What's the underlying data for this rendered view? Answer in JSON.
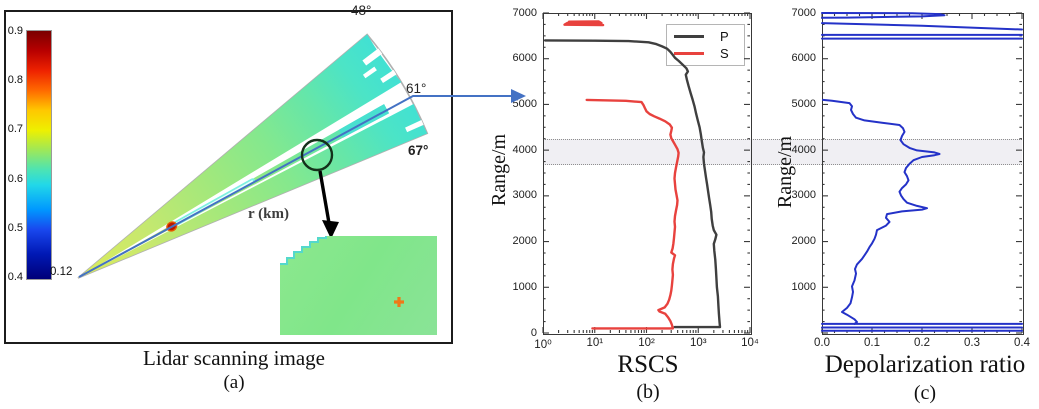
{
  "panel_a": {
    "caption": "Lidar scanning image",
    "tag": "(a)",
    "colorbar": {
      "tick_labels": [
        "0.9",
        "0.8",
        "0.7",
        "0.6",
        "0.5",
        "0.4"
      ],
      "origin_label": "0.12",
      "top_color": "#7a0000",
      "bottom_color": "#000078"
    },
    "angles": {
      "top": "48°",
      "middle": "61°",
      "bottom": "67°"
    },
    "range_label": "r (km)"
  },
  "panel_b": {
    "tag": "(b)",
    "xlabel": "RSCS",
    "ylabel": "Range/m",
    "x_tick_labels": [
      "10⁰",
      "10¹",
      "10²",
      "10³",
      "10⁴"
    ],
    "y_tick_labels": [
      "7000",
      "6000",
      "5000",
      "4000",
      "3000",
      "2000",
      "1000",
      "0"
    ],
    "legend": [
      {
        "label": "P",
        "color": "#3f3f3f"
      },
      {
        "label": "S",
        "color": "#e8423e"
      }
    ]
  },
  "panel_c": {
    "tag": "(c)",
    "xlabel": "Depolarization ratio",
    "ylabel": "Range/m",
    "x_tick_labels": [
      "0.0",
      "0.1",
      "0.2",
      "0.3",
      "0.4"
    ],
    "y_tick_labels": [
      "7000",
      "6000",
      "5000",
      "4000",
      "3000",
      "2000",
      "1000"
    ]
  },
  "colors": {
    "p_curve": "#3f3f3f",
    "s_curve": "#e8423e",
    "depol_curve": "#2432c8",
    "connector": "#4472c4",
    "fan_origin_color": "#dcec5a",
    "fan_rim_color": "#3fe0d6",
    "inset_fill": "#84e78a",
    "hotspot_fill": "#b81800",
    "hotspot_edge": "#e85c00",
    "plus_marker": "#f07818"
  },
  "highlight_band": {
    "range_min_m": 3730,
    "range_max_m": 4240
  },
  "chart_data": [
    {
      "type": "line",
      "title": "Range-corrected signal profiles",
      "xlabel": "RSCS",
      "ylabel": "Range/m",
      "x_scale": "log10",
      "xlim": [
        1,
        10000
      ],
      "ylim": [
        0,
        7000
      ],
      "legend_position": "upper right",
      "series": [
        {
          "name": "P",
          "color": "#3f3f3f",
          "points": [
            [
              350,
              130
            ],
            [
              2630,
              130
            ],
            [
              2570,
              250
            ],
            [
              2510,
              420
            ],
            [
              2450,
              600
            ],
            [
              2400,
              800
            ],
            [
              2290,
              1000
            ],
            [
              2240,
              1200
            ],
            [
              2190,
              1400
            ],
            [
              2140,
              1600
            ],
            [
              2040,
              1800
            ],
            [
              2000,
              1950
            ],
            [
              2140,
              2050
            ],
            [
              2240,
              2150
            ],
            [
              2000,
              2250
            ],
            [
              1900,
              2350
            ],
            [
              1820,
              2500
            ],
            [
              1780,
              2650
            ],
            [
              1700,
              2800
            ],
            [
              1620,
              2950
            ],
            [
              1550,
              3100
            ],
            [
              1480,
              3250
            ],
            [
              1410,
              3400
            ],
            [
              1350,
              3550
            ],
            [
              1290,
              3700
            ],
            [
              1260,
              3850
            ],
            [
              1290,
              3950
            ],
            [
              1230,
              4050
            ],
            [
              1170,
              4200
            ],
            [
              1120,
              4350
            ],
            [
              1060,
              4500
            ],
            [
              980,
              4650
            ],
            [
              910,
              4800
            ],
            [
              850,
              4950
            ],
            [
              780,
              5100
            ],
            [
              710,
              5250
            ],
            [
              650,
              5400
            ],
            [
              600,
              5550
            ],
            [
              575,
              5650
            ],
            [
              630,
              5720
            ],
            [
              590,
              5790
            ],
            [
              500,
              5870
            ],
            [
              420,
              5950
            ],
            [
              355,
              6020
            ],
            [
              320,
              6090
            ],
            [
              290,
              6150
            ],
            [
              250,
              6220
            ],
            [
              200,
              6270
            ],
            [
              155,
              6320
            ],
            [
              110,
              6360
            ],
            [
              45,
              6385
            ],
            [
              10,
              6395
            ],
            [
              1.1,
              6400
            ]
          ]
        },
        {
          "name": "S",
          "color": "#e8423e",
          "points": [
            [
              9,
              100
            ],
            [
              324,
              100
            ],
            [
              310,
              180
            ],
            [
              290,
              260
            ],
            [
              263,
              340
            ],
            [
              230,
              420
            ],
            [
              178,
              470
            ],
            [
              170,
              500
            ],
            [
              225,
              560
            ],
            [
              255,
              640
            ],
            [
              275,
              730
            ],
            [
              290,
              830
            ],
            [
              302,
              930
            ],
            [
              310,
              1040
            ],
            [
              316,
              1150
            ],
            [
              324,
              1270
            ],
            [
              316,
              1390
            ],
            [
              324,
              1510
            ],
            [
              340,
              1630
            ],
            [
              355,
              1700
            ],
            [
              302,
              1760
            ],
            [
              320,
              1850
            ],
            [
              331,
              1960
            ],
            [
              340,
              2080
            ],
            [
              347,
              2200
            ],
            [
              355,
              2320
            ],
            [
              347,
              2440
            ],
            [
              355,
              2560
            ],
            [
              372,
              2680
            ],
            [
              390,
              2800
            ],
            [
              398,
              2900
            ],
            [
              380,
              3020
            ],
            [
              363,
              3140
            ],
            [
              355,
              3260
            ],
            [
              347,
              3380
            ],
            [
              355,
              3500
            ],
            [
              372,
              3620
            ],
            [
              390,
              3740
            ],
            [
              410,
              3860
            ],
            [
              417,
              3940
            ],
            [
              398,
              4020
            ],
            [
              363,
              4100
            ],
            [
              331,
              4180
            ],
            [
              302,
              4260
            ],
            [
              290,
              4340
            ],
            [
              302,
              4420
            ],
            [
              310,
              4490
            ],
            [
              282,
              4560
            ],
            [
              230,
              4630
            ],
            [
              178,
              4690
            ],
            [
              141,
              4740
            ],
            [
              115,
              4790
            ],
            [
              100,
              4850
            ],
            [
              93,
              4920
            ],
            [
              87,
              4990
            ],
            [
              80,
              5050
            ],
            [
              40,
              5080
            ],
            [
              7,
              5100
            ]
          ]
        },
        {
          "name": "S-noise-blob",
          "color": "#e8423e",
          "points": [
            [
              3.2,
              6810
            ],
            [
              12,
              6815
            ],
            [
              13.5,
              6780
            ],
            [
              3,
              6785
            ],
            [
              2.6,
              6745
            ],
            [
              14.5,
              6735
            ]
          ]
        }
      ]
    },
    {
      "type": "line",
      "title": "Depolarization ratio profile",
      "xlabel": "Depolarization ratio",
      "ylabel": "Range/m",
      "x_scale": "linear",
      "xlim": [
        0,
        0.4
      ],
      "ylim": [
        0,
        7000
      ],
      "series": [
        {
          "name": "depolarization-ratio",
          "color": "#2432c8",
          "points": [
            [
              0.065,
              200
            ],
            [
              0.07,
              240
            ],
            [
              0.065,
              300
            ],
            [
              0.05,
              400
            ],
            [
              0.04,
              460
            ],
            [
              0.05,
              550
            ],
            [
              0.057,
              650
            ],
            [
              0.06,
              780
            ],
            [
              0.062,
              900
            ],
            [
              0.06,
              1020
            ],
            [
              0.065,
              1150
            ],
            [
              0.068,
              1300
            ],
            [
              0.066,
              1400
            ],
            [
              0.07,
              1500
            ],
            [
              0.08,
              1620
            ],
            [
              0.085,
              1700
            ],
            [
              0.09,
              1780
            ],
            [
              0.095,
              1880
            ],
            [
              0.1,
              1960
            ],
            [
              0.105,
              2060
            ],
            [
              0.108,
              2150
            ],
            [
              0.11,
              2250
            ],
            [
              0.128,
              2350
            ],
            [
              0.135,
              2430
            ],
            [
              0.128,
              2520
            ],
            [
              0.13,
              2600
            ],
            [
              0.16,
              2660
            ],
            [
              0.2,
              2700
            ],
            [
              0.21,
              2730
            ],
            [
              0.19,
              2780
            ],
            [
              0.17,
              2850
            ],
            [
              0.163,
              2930
            ],
            [
              0.158,
              3010
            ],
            [
              0.155,
              3090
            ],
            [
              0.16,
              3170
            ],
            [
              0.168,
              3250
            ],
            [
              0.173,
              3340
            ],
            [
              0.17,
              3430
            ],
            [
              0.165,
              3520
            ],
            [
              0.168,
              3610
            ],
            [
              0.175,
              3700
            ],
            [
              0.183,
              3780
            ],
            [
              0.2,
              3850
            ],
            [
              0.225,
              3890
            ],
            [
              0.235,
              3915
            ],
            [
              0.225,
              3950
            ],
            [
              0.19,
              3995
            ],
            [
              0.175,
              4050
            ],
            [
              0.163,
              4130
            ],
            [
              0.157,
              4220
            ],
            [
              0.16,
              4310
            ],
            [
              0.165,
              4400
            ],
            [
              0.162,
              4480
            ],
            [
              0.155,
              4550
            ],
            [
              0.12,
              4600
            ],
            [
              0.085,
              4650
            ],
            [
              0.068,
              4710
            ],
            [
              0.062,
              4790
            ],
            [
              0.058,
              4880
            ],
            [
              0.06,
              4960
            ],
            [
              0.055,
              5030
            ],
            [
              0.02,
              5080
            ],
            [
              0.002,
              5100
            ]
          ]
        },
        {
          "name": "noise-line-low-1",
          "color": "#2432c8",
          "points": [
            [
              0,
              200
            ],
            [
              0.4,
              200
            ]
          ]
        },
        {
          "name": "noise-line-low-2",
          "color": "#2432c8",
          "points": [
            [
              0,
              120
            ],
            [
              0.4,
              120
            ]
          ]
        },
        {
          "name": "noise-line-low-3",
          "color": "#2432c8",
          "points": [
            [
              0,
              50
            ],
            [
              0.4,
              50
            ]
          ]
        },
        {
          "name": "noise-hairpin-top",
          "color": "#2432c8",
          "points": [
            [
              0,
              7000
            ],
            [
              0.18,
              6995
            ],
            [
              0.235,
              6975
            ],
            [
              0.245,
              6950
            ],
            [
              0.2,
              6925
            ],
            [
              0.05,
              6900
            ],
            [
              0,
              6895
            ]
          ]
        },
        {
          "name": "noise-diagonal",
          "color": "#2432c8",
          "points": [
            [
              0,
              6780
            ],
            [
              0.2,
              6720
            ],
            [
              0.4,
              6640
            ]
          ]
        },
        {
          "name": "noise-line-high-1",
          "color": "#2432c8",
          "points": [
            [
              0,
              6520
            ],
            [
              0.4,
              6520
            ]
          ]
        },
        {
          "name": "noise-line-high-2",
          "color": "#2432c8",
          "points": [
            [
              0,
              6440
            ],
            [
              0.4,
              6440
            ]
          ]
        }
      ]
    }
  ]
}
